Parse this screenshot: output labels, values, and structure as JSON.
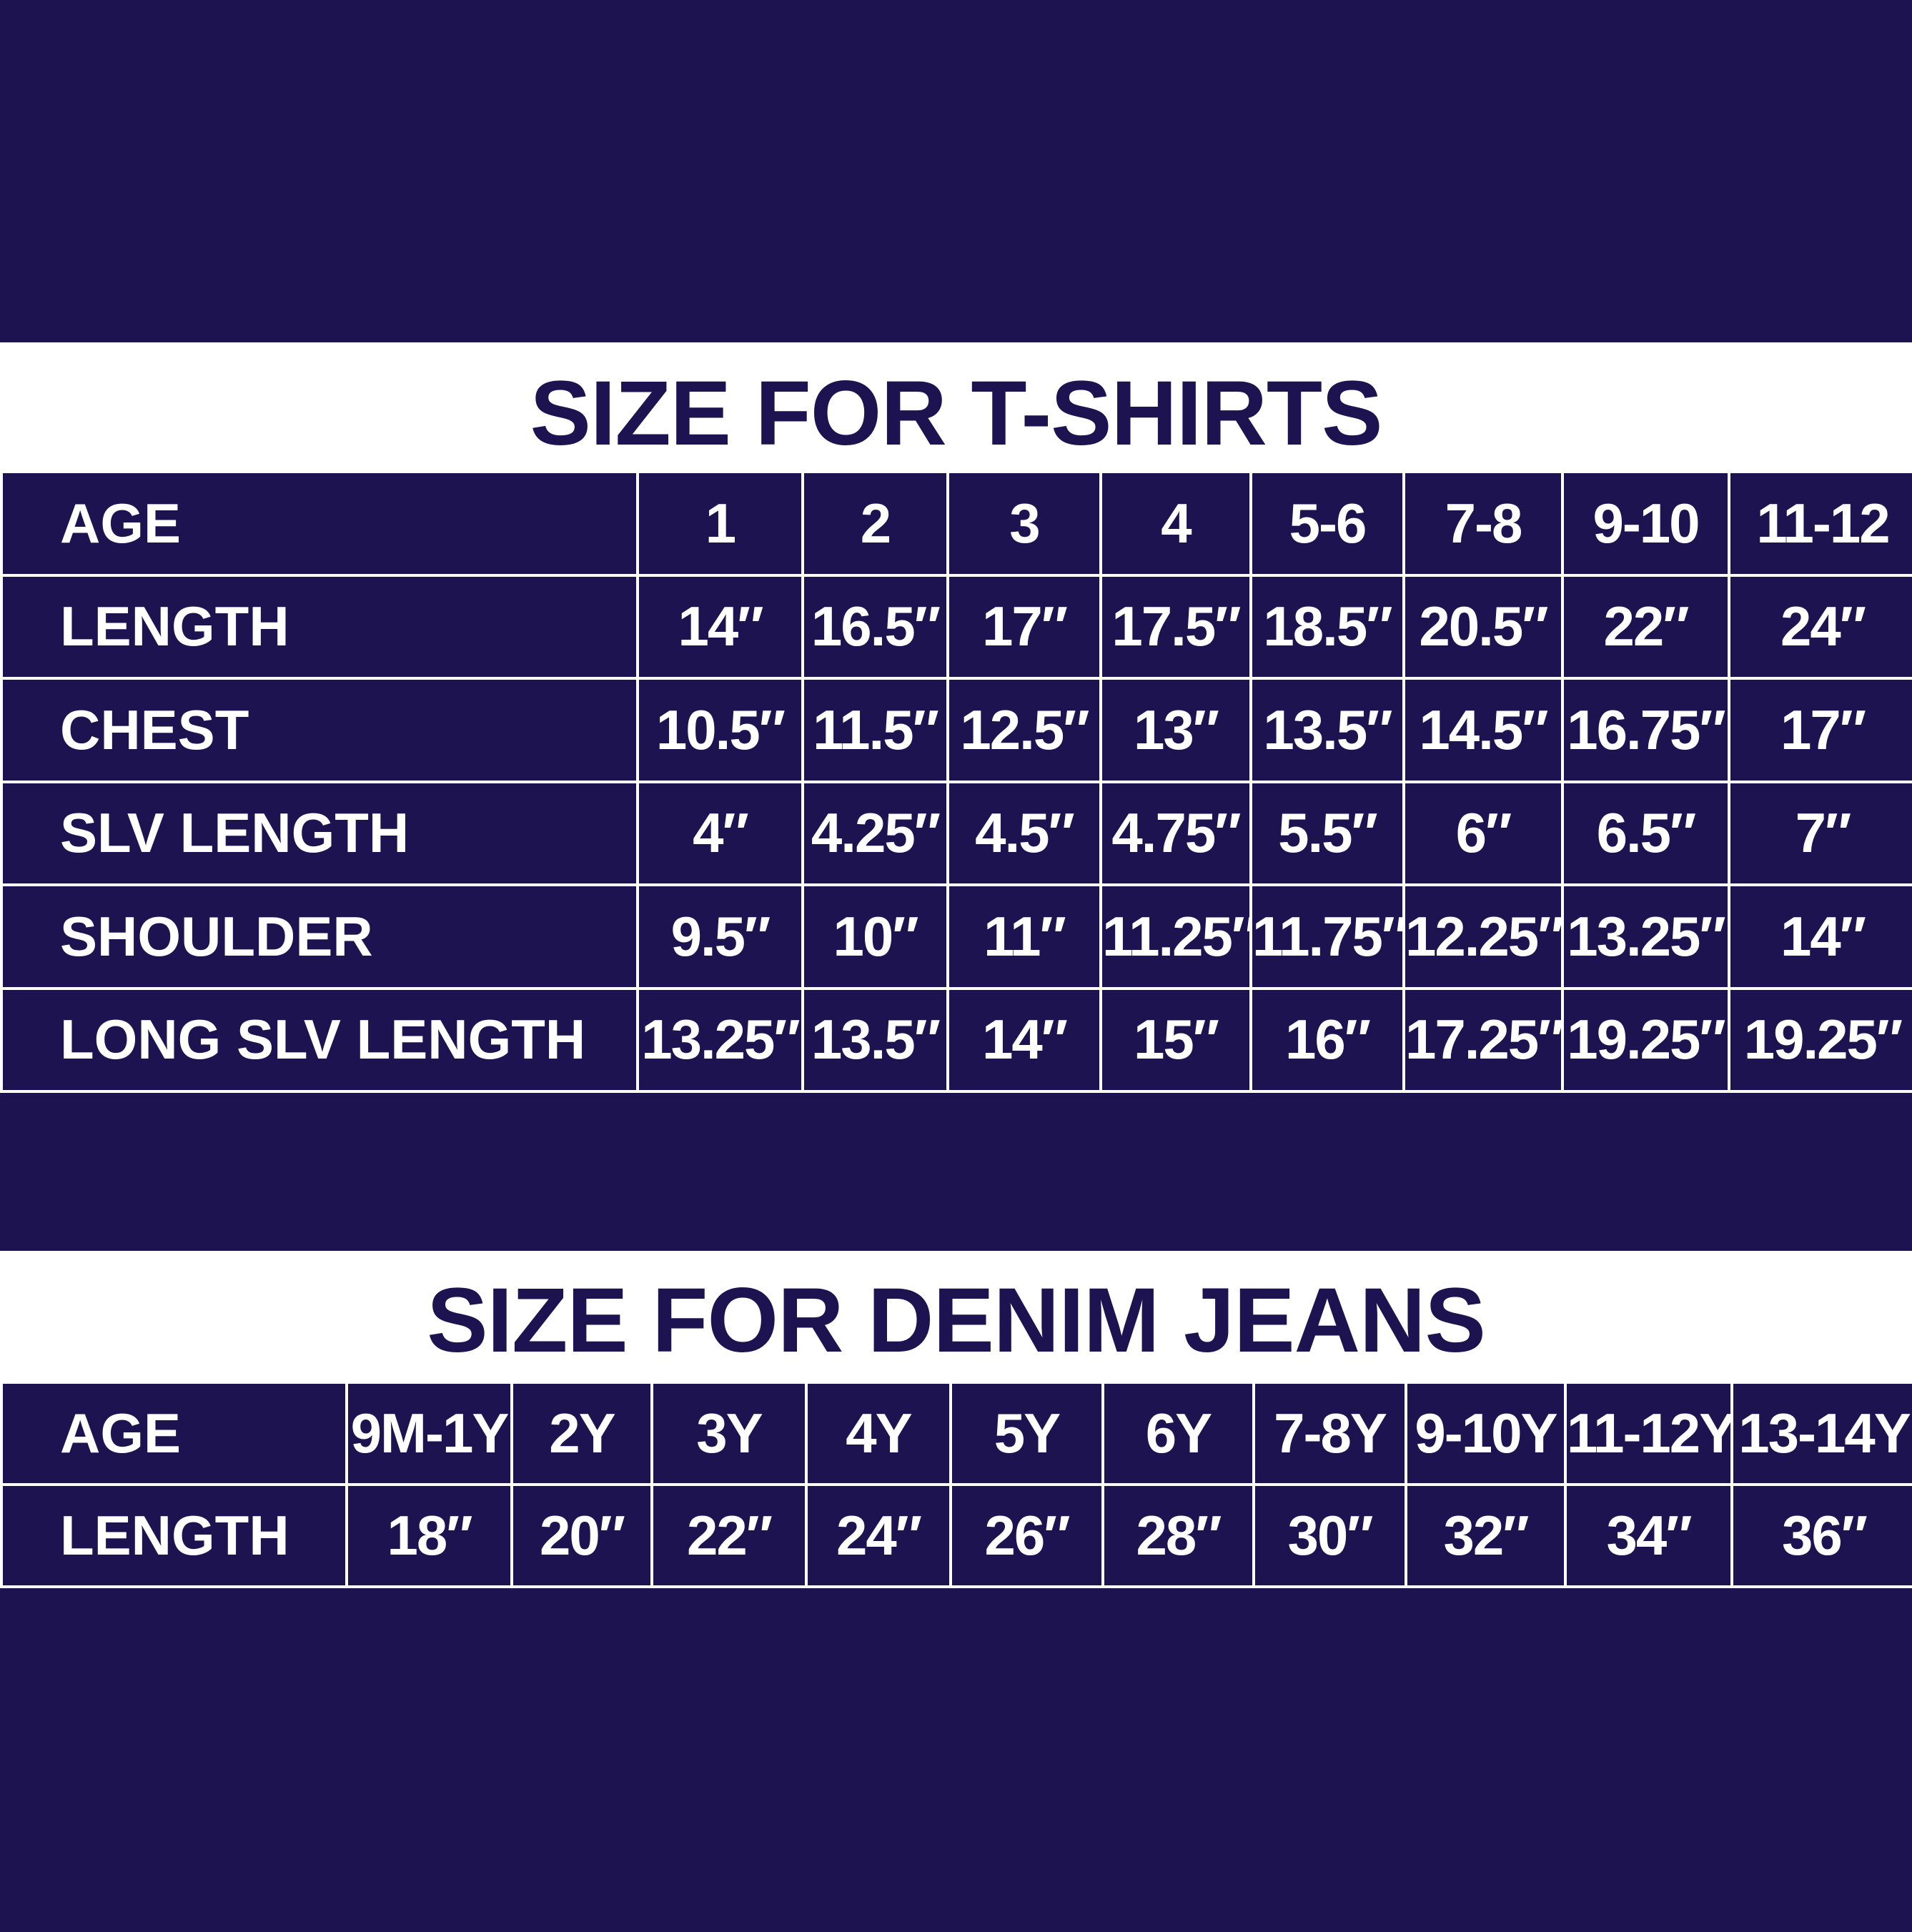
{
  "colors": {
    "background": "#1c1350",
    "band": "#ffffff",
    "text_on_dark": "#ffffff"
  },
  "tshirts": {
    "title": "SIZE FOR T-SHIRTS",
    "rows": [
      {
        "label": "AGE",
        "values": [
          "1",
          "2",
          "3",
          "4",
          "5-6",
          "7-8",
          "9-10",
          "11-12"
        ]
      },
      {
        "label": "LENGTH",
        "values": [
          "14″",
          "16.5″",
          "17″",
          "17.5″",
          "18.5″",
          "20.5″",
          "22″",
          "24″"
        ]
      },
      {
        "label": "CHEST",
        "values": [
          "10.5″",
          "11.5″",
          "12.5″",
          "13″",
          "13.5″",
          "14.5″",
          "16.75″",
          "17″"
        ]
      },
      {
        "label": "SLV LENGTH",
        "values": [
          "4″",
          "4.25″",
          "4.5″",
          "4.75″",
          "5.5″",
          "6″",
          "6.5″",
          "7″"
        ]
      },
      {
        "label": "SHOULDER",
        "values": [
          "9.5″",
          "10″",
          "11″",
          "11.25″",
          "11.75″",
          "12.25″",
          "13.25″",
          "14″"
        ]
      },
      {
        "label": "LONG SLV LENGTH",
        "values": [
          "13.25″",
          "13.5″",
          "14″",
          "15″",
          "16″",
          "17.25″",
          "19.25″",
          "19.25″"
        ]
      }
    ]
  },
  "jeans": {
    "title": "SIZE FOR DENIM JEANS",
    "rows": [
      {
        "label": "AGE",
        "values": [
          "9M-1Y",
          "2Y",
          "3Y",
          "4Y",
          "5Y",
          "6Y",
          "7-8Y",
          "9-10Y",
          "11-12Y",
          "13-14Y"
        ]
      },
      {
        "label": "LENGTH",
        "values": [
          "18″",
          "20″",
          "22″",
          "24″",
          "26″",
          "28″",
          "30″",
          "32″",
          "34″",
          "36″"
        ]
      }
    ]
  }
}
